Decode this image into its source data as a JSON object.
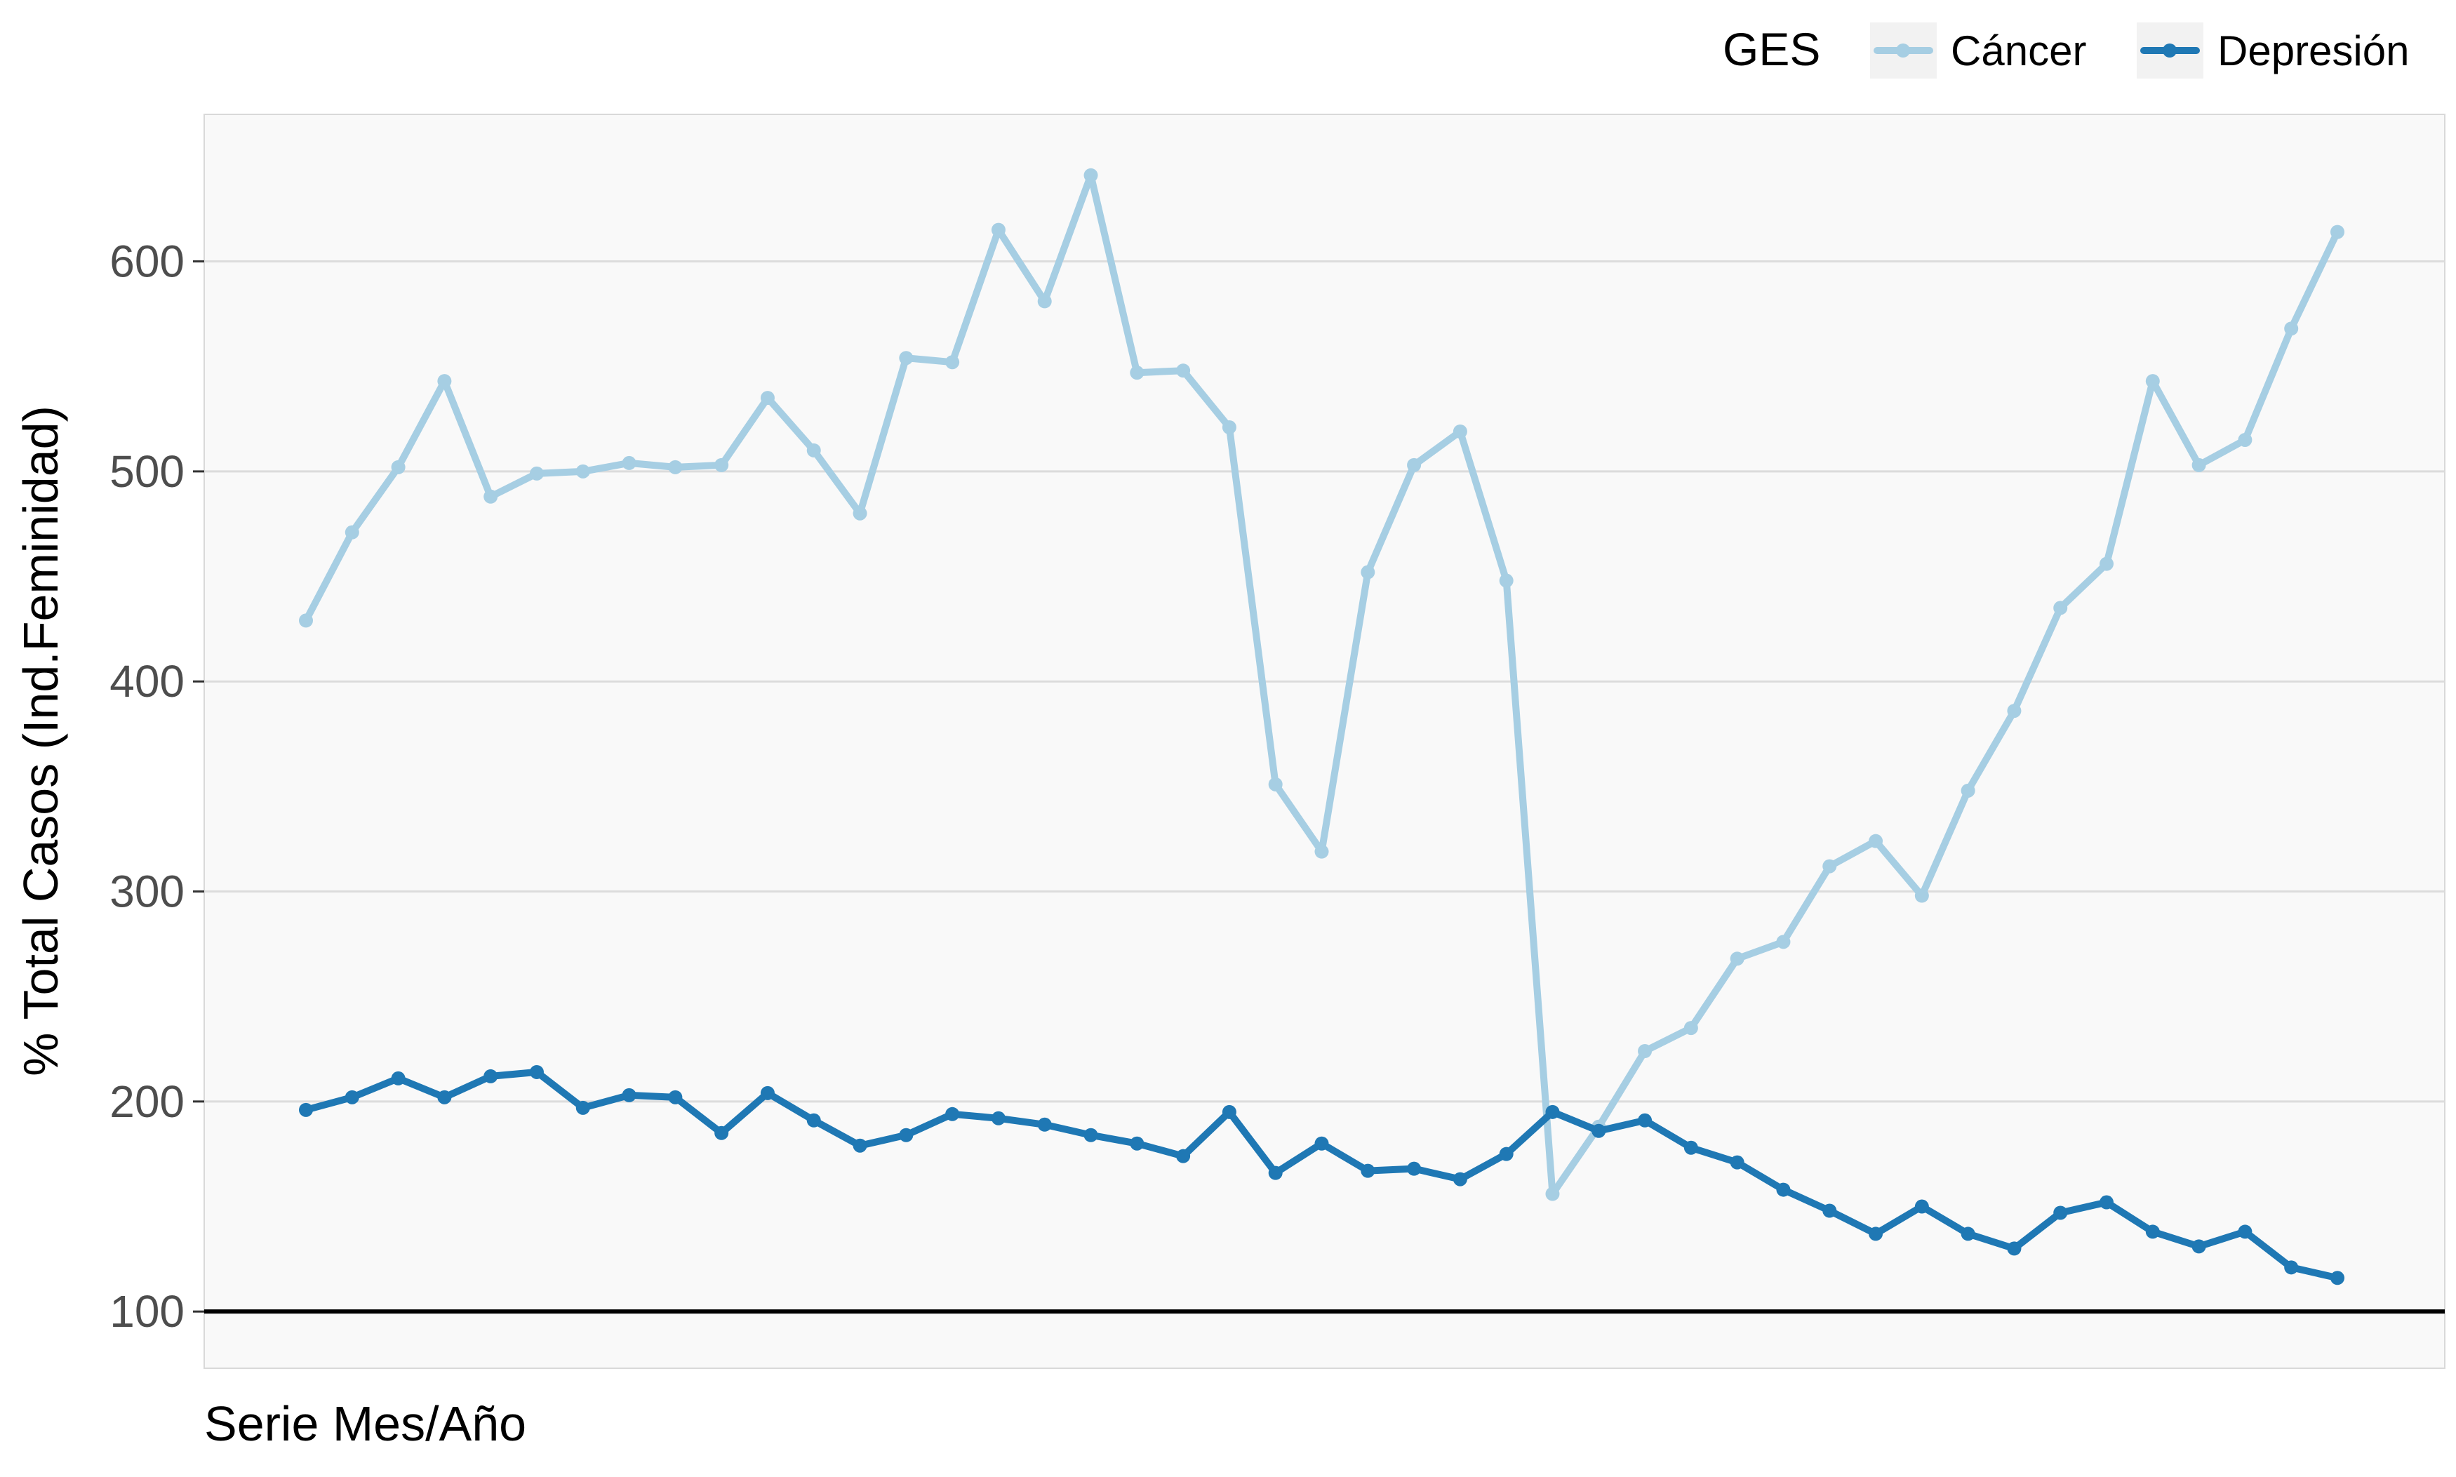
{
  "chart_data": {
    "type": "line",
    "title": "",
    "xlabel": "Serie Mes/Año",
    "ylabel": "% Total Casos (Ind.Feminidad)",
    "ylim": [
      73,
      670
    ],
    "yticks": [
      100,
      200,
      300,
      400,
      500,
      600
    ],
    "x_tick_labels": "none",
    "grid": "horizontal major",
    "reference_line": {
      "y": 100,
      "color": "#000000"
    },
    "legend": {
      "title": "GES",
      "placement": "top-right"
    },
    "panel_background": "#f9f9f9",
    "series": [
      {
        "name": "Cáncer",
        "color": "#a6cee3",
        "values": [
          429,
          471,
          502,
          543,
          488,
          499,
          500,
          504,
          502,
          503,
          535,
          510,
          480,
          554,
          552,
          615,
          581,
          641,
          547,
          548,
          521,
          351,
          319,
          452,
          503,
          519,
          448,
          156,
          188,
          224,
          235,
          268,
          276,
          312,
          324,
          298,
          348,
          386,
          435,
          456,
          543,
          503,
          515,
          568,
          614
        ]
      },
      {
        "name": "Depresión",
        "color": "#1f78b4",
        "values": [
          196,
          202,
          211,
          202,
          212,
          214,
          197,
          203,
          202,
          185,
          204,
          191,
          179,
          184,
          194,
          192,
          189,
          184,
          180,
          174,
          195,
          166,
          180,
          167,
          168,
          163,
          175,
          195,
          186,
          191,
          178,
          171,
          158,
          148,
          137,
          150,
          137,
          130,
          147,
          152,
          138,
          131,
          138,
          121,
          116
        ]
      }
    ]
  }
}
